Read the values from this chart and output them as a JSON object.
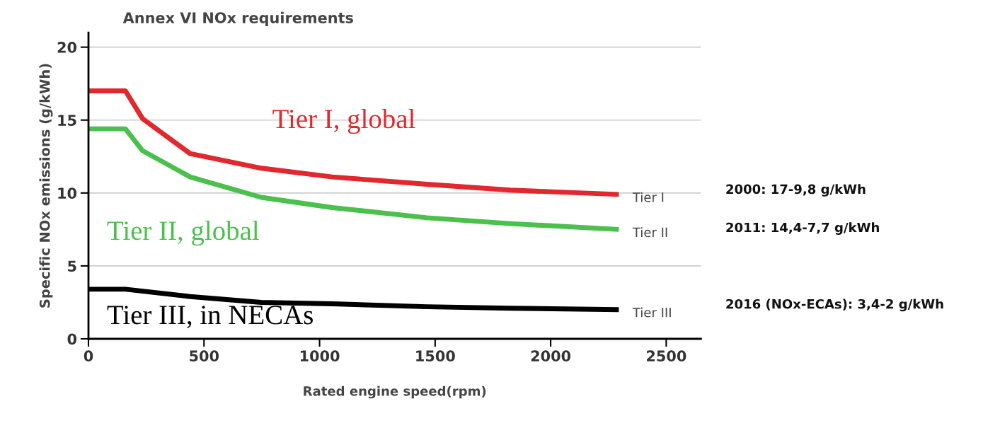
{
  "chart_data": {
    "type": "line",
    "title": "Annex VI NOx requirements",
    "xlabel": "Rated engine speed(rpm)",
    "ylabel": "Specific NOx emissions (g/kWh)",
    "xlim": [
      0,
      2650
    ],
    "ylim": [
      0,
      21
    ],
    "xticks": [
      0,
      500,
      1000,
      1500,
      2000,
      2500
    ],
    "yticks": [
      0,
      5,
      10,
      15,
      20
    ],
    "grid": "y",
    "legend": false,
    "marker": "none",
    "line_style": "solid",
    "series": [
      {
        "name": "Tier I",
        "color": "#e0282e",
        "x": [
          0,
          160,
          234,
          440,
          748,
          1055,
          1465,
          1825,
          2295
        ],
        "values": [
          17,
          17,
          15.1,
          12.7,
          11.7,
          11.1,
          10.6,
          10.2,
          9.9
        ]
      },
      {
        "name": "Tier II",
        "color": "#4cc04c",
        "x": [
          0,
          160,
          234,
          440,
          748,
          1055,
          1465,
          1825,
          2295
        ],
        "values": [
          14.4,
          14.4,
          12.9,
          11.1,
          9.7,
          9.0,
          8.3,
          7.9,
          7.5
        ]
      },
      {
        "name": "Tier III",
        "color": "#000000",
        "x": [
          0,
          160,
          440,
          748,
          1055,
          1465,
          1825,
          2295
        ],
        "values": [
          3.4,
          3.4,
          2.9,
          2.5,
          2.4,
          2.2,
          2.1,
          2.0
        ]
      }
    ],
    "annotations": [
      "Tier I, global",
      "Tier II, global",
      "Tier III, in NECAs",
      "2000: 17-9,8 g/kWh",
      "2011: 14,4-7,7 g/kWh",
      "2016 (NOx-ECAs): 3,4-2 g/kWh"
    ]
  }
}
